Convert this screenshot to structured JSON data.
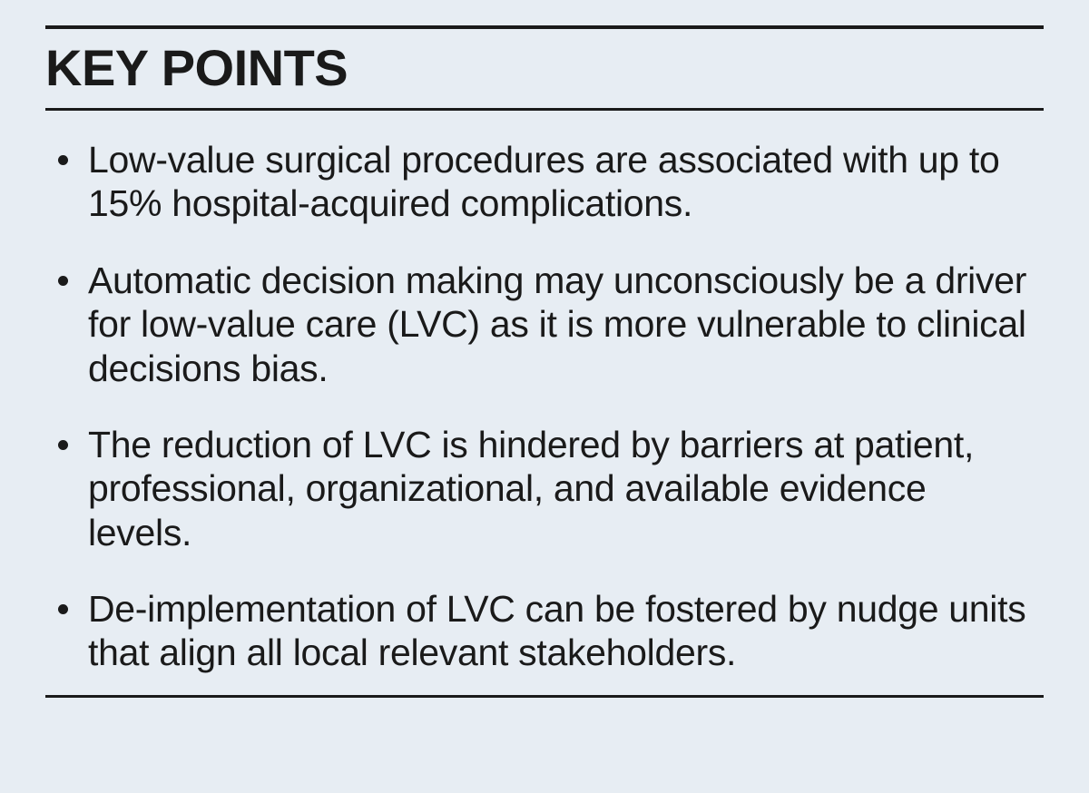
{
  "keyPointsBox": {
    "title": "KEY POINTS",
    "titleFontSize": 56,
    "titleFontWeight": 800,
    "bodyFontSize": 41,
    "bodyLineHeight": 1.18,
    "textColor": "#1a1a1a",
    "backgroundColor": "#e7edf3",
    "topRuleWidth": 4.5,
    "titleRuleWidth": 3,
    "bottomRuleWidth": 3,
    "bulletSize": 11,
    "bulletColor": "#1a1a1a",
    "points": [
      "Low-value surgical procedures are associated with up to 15% hospital-acquired complications.",
      "Automatic decision making may unconsciously be a driver for low-value care (LVC) as it is more vulnerable to clinical decisions bias.",
      "The reduction of LVC is hindered by barriers at patient, professional, organizational, and available evidence levels.",
      "De-implementation of LVC can be fostered by nudge units that align all local relevant stakeholders."
    ]
  }
}
